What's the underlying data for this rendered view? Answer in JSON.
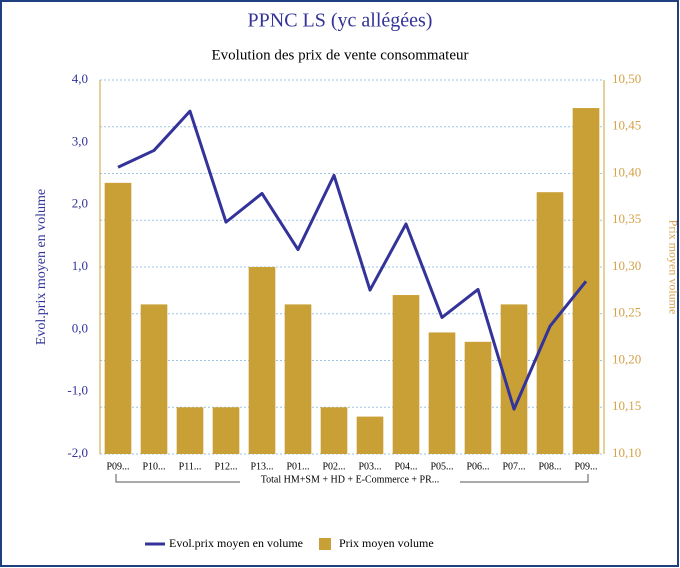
{
  "chart_data": {
    "type": "combo",
    "title": "PPNC LS (yc allégées)",
    "subtitle": "Evolution des prix de vente consommateur",
    "ylabel": "Evol.prix moyen en volume",
    "y2label": "Prix moyen volume",
    "group_label": "Total HM+SM + HD + E-Commerce + PR...",
    "categories": [
      "P09...",
      "P10...",
      "P11...",
      "P12...",
      "P13...",
      "P01...",
      "P02...",
      "P03...",
      "P04...",
      "P05...",
      "P06...",
      "P07...",
      "P08...",
      "P09..."
    ],
    "series": [
      {
        "name": "Evol.prix moyen en volume",
        "type": "line",
        "color": "#333399",
        "axis": "y",
        "values": [
          2.6,
          2.87,
          3.5,
          1.72,
          2.18,
          1.28,
          2.47,
          0.63,
          1.69,
          0.19,
          0.64,
          -1.28,
          0.05,
          0.77
        ]
      },
      {
        "name": "Prix moyen volume",
        "type": "bar",
        "color": "#c9a035",
        "axis": "y2",
        "values": [
          10.39,
          10.26,
          10.15,
          10.15,
          10.3,
          10.26,
          10.15,
          10.14,
          10.27,
          10.23,
          10.22,
          10.26,
          10.38,
          10.47
        ]
      }
    ],
    "ylim": [
      -2,
      4
    ],
    "yticks": [
      {
        "value": 4,
        "label": "4,0"
      },
      {
        "value": 3,
        "label": "3,0"
      },
      {
        "value": 2,
        "label": "2,0"
      },
      {
        "value": 1,
        "label": "1,0"
      },
      {
        "value": 0,
        "label": "0,0"
      },
      {
        "value": -1,
        "label": "-1,0"
      },
      {
        "value": -2,
        "label": "-2,0"
      }
    ],
    "y2lim": [
      10.1,
      10.5
    ],
    "y2ticks": [
      {
        "value": 10.5,
        "label": "10,50"
      },
      {
        "value": 10.45,
        "label": "10,45"
      },
      {
        "value": 10.4,
        "label": "10,40"
      },
      {
        "value": 10.35,
        "label": "10,35"
      },
      {
        "value": 10.3,
        "label": "10,30"
      },
      {
        "value": 10.25,
        "label": "10,25"
      },
      {
        "value": 10.2,
        "label": "10,20"
      },
      {
        "value": 10.15,
        "label": "10,15"
      },
      {
        "value": 10.1,
        "label": "10,10"
      }
    ],
    "grid": "y2",
    "legend": "bottom"
  }
}
